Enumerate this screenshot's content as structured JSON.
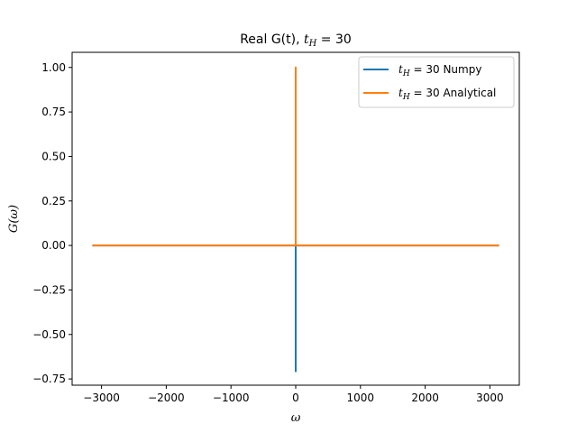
{
  "chart_data": {
    "type": "line",
    "title": "Real G(t), t_H = 30",
    "title_main": "Real G(t), ",
    "title_var": "t",
    "title_sub": "H",
    "title_rest": " = 30",
    "xlabel": "ω",
    "ylabel": "G(ω)",
    "xlim": [
      -3454,
      3454
    ],
    "ylim": [
      -0.785,
      1.085
    ],
    "xticks": [
      -3000,
      -2000,
      -1000,
      0,
      1000,
      2000,
      3000
    ],
    "xtick_labels": [
      "−3000",
      "−2000",
      "−1000",
      "0",
      "1000",
      "2000",
      "3000"
    ],
    "yticks": [
      -0.75,
      -0.5,
      -0.25,
      0.0,
      0.25,
      0.5,
      0.75,
      1.0
    ],
    "ytick_labels": [
      "−0.75",
      "−0.50",
      "−0.25",
      "0.00",
      "0.25",
      "0.50",
      "0.75",
      "1.00"
    ],
    "grid": false,
    "legend_position": "top-right",
    "series": [
      {
        "name": "t_H = 30 Numpy",
        "legend_suffix": " = 30 Numpy",
        "color": "#1f77b4",
        "x": [
          -3141.6,
          -1,
          0,
          0,
          0,
          1,
          3141.6
        ],
        "y": [
          0,
          0,
          0,
          -0.707,
          0,
          0,
          0
        ]
      },
      {
        "name": "t_H = 30 Analytical",
        "legend_suffix": " = 30 Analytical",
        "color": "#ff7f0e",
        "x": [
          -3141.6,
          -1,
          0,
          0,
          0,
          1,
          3141.6
        ],
        "y": [
          0,
          0,
          0,
          1.0,
          0,
          0,
          0
        ]
      }
    ]
  }
}
